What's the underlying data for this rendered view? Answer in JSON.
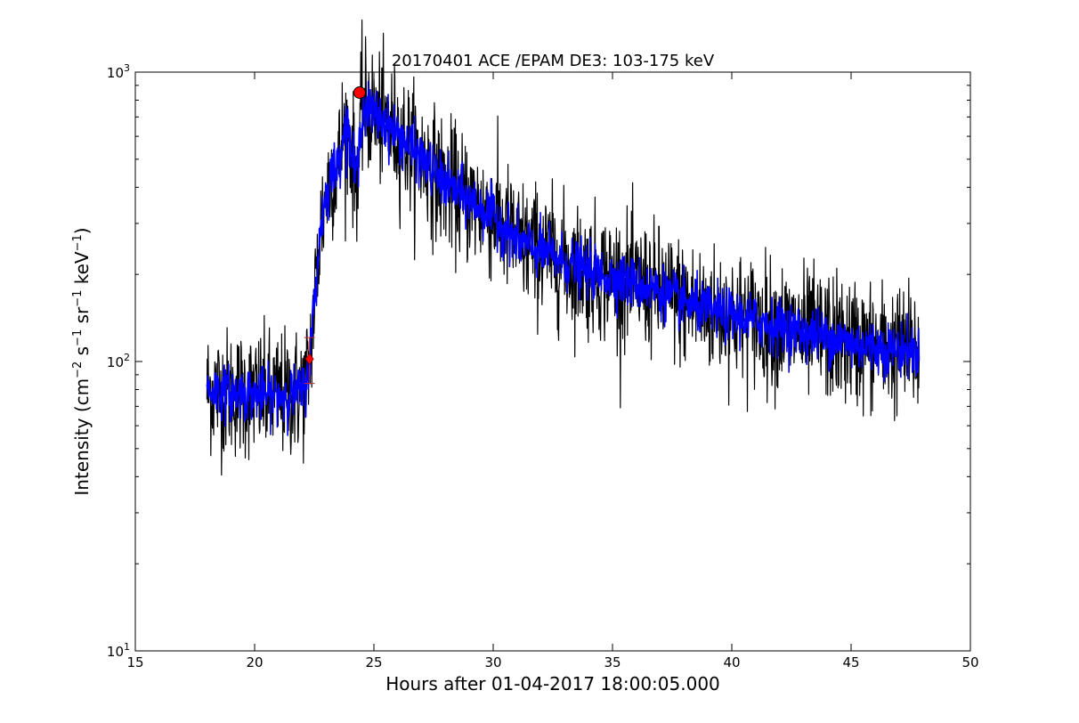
{
  "chart_data": {
    "type": "line",
    "title": "20170401 ACE /EPAM DE3: 103-175 keV",
    "xlabel": "Hours after 01-04-2017 18:00:05.000",
    "ylabel_parts": [
      "Intensity (cm",
      "−2",
      " s",
      "−1",
      " sr",
      "−1",
      " keV",
      "−1",
      ")"
    ],
    "xlim": [
      15,
      50
    ],
    "ylim": [
      10,
      1000
    ],
    "yscale": "log",
    "grid": false,
    "x_ticks": [
      15,
      20,
      25,
      30,
      35,
      40,
      45,
      50
    ],
    "x_tick_labels": [
      "15",
      "20",
      "25",
      "30",
      "35",
      "40",
      "45",
      "50"
    ],
    "y_ticks": [
      10,
      100,
      1000
    ],
    "y_tick_labels": [
      {
        "base": "10",
        "exp": "1"
      },
      {
        "base": "10",
        "exp": "2"
      },
      {
        "base": "10",
        "exp": "3"
      }
    ],
    "series": [
      {
        "style": "raw-noisy",
        "color": "#000000",
        "noise_dex": 0.11,
        "x_range": [
          18.0,
          47.85
        ],
        "trend": [
          [
            18.0,
            80
          ],
          [
            19.0,
            78
          ],
          [
            20.0,
            77
          ],
          [
            21.0,
            76
          ],
          [
            21.8,
            78
          ],
          [
            22.1,
            80
          ],
          [
            22.3,
            100
          ],
          [
            22.5,
            160
          ],
          [
            22.8,
            310
          ],
          [
            23.2,
            450
          ],
          [
            23.5,
            470
          ],
          [
            23.7,
            620
          ],
          [
            23.9,
            640
          ],
          [
            24.2,
            450
          ],
          [
            24.35,
            480
          ],
          [
            24.5,
            760
          ],
          [
            25.0,
            720
          ],
          [
            26.0,
            610
          ],
          [
            27.0,
            500
          ],
          [
            28.0,
            410
          ],
          [
            29.0,
            360
          ],
          [
            30.0,
            320
          ],
          [
            31.0,
            260
          ],
          [
            32.0,
            240
          ],
          [
            33.0,
            220
          ],
          [
            34.0,
            205
          ],
          [
            35.0,
            195
          ],
          [
            36.0,
            185
          ],
          [
            37.0,
            175
          ],
          [
            38.0,
            160
          ],
          [
            39.0,
            150
          ],
          [
            40.0,
            145
          ],
          [
            41.0,
            138
          ],
          [
            42.0,
            132
          ],
          [
            43.0,
            126
          ],
          [
            44.0,
            122
          ],
          [
            45.0,
            116
          ],
          [
            46.0,
            112
          ],
          [
            47.0,
            110
          ],
          [
            47.85,
            108
          ]
        ]
      },
      {
        "style": "smoothed",
        "color": "#0000ff",
        "noise_dex": 0.045,
        "x_range": [
          18.0,
          47.85
        ],
        "trend": [
          [
            18.0,
            80
          ],
          [
            19.0,
            78
          ],
          [
            20.0,
            77
          ],
          [
            21.0,
            76
          ],
          [
            21.8,
            78
          ],
          [
            22.1,
            80
          ],
          [
            22.3,
            100
          ],
          [
            22.5,
            160
          ],
          [
            22.8,
            310
          ],
          [
            23.2,
            450
          ],
          [
            23.5,
            470
          ],
          [
            23.7,
            620
          ],
          [
            23.9,
            640
          ],
          [
            24.2,
            450
          ],
          [
            24.35,
            480
          ],
          [
            24.5,
            760
          ],
          [
            25.0,
            720
          ],
          [
            26.0,
            610
          ],
          [
            27.0,
            500
          ],
          [
            28.0,
            410
          ],
          [
            29.0,
            360
          ],
          [
            30.0,
            320
          ],
          [
            31.0,
            260
          ],
          [
            32.0,
            240
          ],
          [
            33.0,
            220
          ],
          [
            34.0,
            205
          ],
          [
            35.0,
            195
          ],
          [
            36.0,
            185
          ],
          [
            37.0,
            175
          ],
          [
            38.0,
            160
          ],
          [
            39.0,
            150
          ],
          [
            40.0,
            145
          ],
          [
            41.0,
            138
          ],
          [
            42.0,
            132
          ],
          [
            43.0,
            126
          ],
          [
            44.0,
            122
          ],
          [
            45.0,
            116
          ],
          [
            46.0,
            112
          ],
          [
            47.0,
            110
          ],
          [
            47.85,
            108
          ]
        ]
      }
    ],
    "markers": [
      {
        "kind": "onset",
        "shape": "diamond",
        "x": 22.3,
        "y": 102,
        "color": "#ff0000",
        "err_low": 84,
        "err_high": 121
      },
      {
        "kind": "peak",
        "shape": "circle",
        "x": 24.4,
        "y": 850,
        "color": "#ff0000"
      }
    ]
  }
}
